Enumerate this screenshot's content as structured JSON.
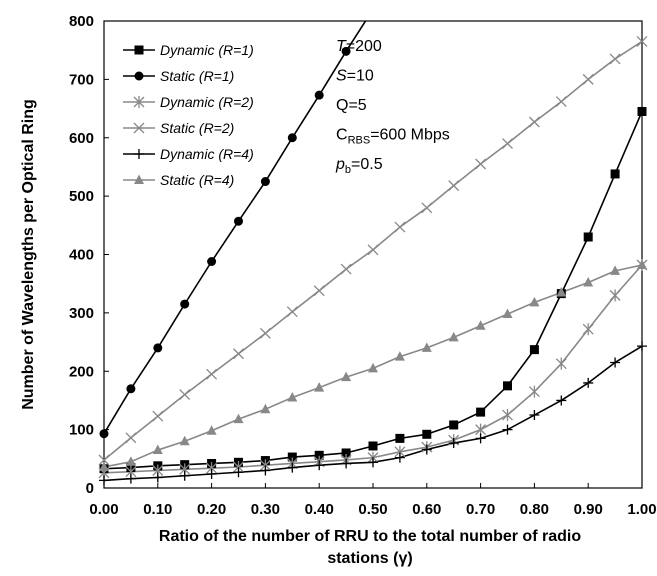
{
  "chart_data": {
    "type": "line",
    "xlabel_lines": [
      "Ratio of the number of RRU to the total number of radio",
      "stations (γ)"
    ],
    "ylabel": "Number of Wavelengths per Optical Ring",
    "xlim": [
      0,
      1
    ],
    "ylim": [
      0,
      800
    ],
    "x_ticks": [
      "0.00",
      "0.10",
      "0.20",
      "0.30",
      "0.40",
      "0.50",
      "0.60",
      "0.70",
      "0.80",
      "0.90",
      "1.00"
    ],
    "y_ticks": [
      "0",
      "100",
      "200",
      "300",
      "400",
      "500",
      "600",
      "700",
      "800"
    ],
    "grid": false,
    "legend_position": "top-left",
    "x": [
      0,
      0.05,
      0.1,
      0.15,
      0.2,
      0.25,
      0.3,
      0.35,
      0.4,
      0.45,
      0.5,
      0.55,
      0.6,
      0.65,
      0.7,
      0.75,
      0.8,
      0.85,
      0.9,
      0.95,
      1.0
    ],
    "series": [
      {
        "name": "Dynamic (R=1)",
        "color": "#000000",
        "marker": "square",
        "values": [
          33,
          35,
          38,
          40,
          42,
          44,
          47,
          53,
          56,
          60,
          72,
          85,
          92,
          108,
          130,
          175,
          237,
          333,
          430,
          538,
          645
        ]
      },
      {
        "name": "Static (R=1)",
        "color": "#000000",
        "marker": "circle",
        "values": [
          93,
          170,
          240,
          315,
          388,
          457,
          525,
          600,
          673,
          748,
          820,
          null,
          null,
          null,
          null,
          null,
          null,
          null,
          null,
          null,
          null
        ]
      },
      {
        "name": "Dynamic (R=2)",
        "color": "#888888",
        "marker": "asterisk",
        "values": [
          26,
          28,
          30,
          32,
          34,
          36,
          39,
          42,
          45,
          48,
          52,
          62,
          70,
          82,
          100,
          125,
          165,
          213,
          272,
          330,
          382
        ]
      },
      {
        "name": "Static (R=2)",
        "color": "#888888",
        "marker": "x",
        "values": [
          48,
          86,
          123,
          160,
          195,
          230,
          265,
          302,
          338,
          375,
          408,
          447,
          480,
          518,
          555,
          590,
          627,
          662,
          700,
          735,
          765
        ]
      },
      {
        "name": "Dynamic (R=4)",
        "color": "#000000",
        "marker": "plus",
        "values": [
          13,
          16,
          18,
          21,
          24,
          27,
          30,
          35,
          39,
          42,
          44,
          52,
          66,
          77,
          85,
          100,
          125,
          150,
          180,
          215,
          243
        ]
      },
      {
        "name": "Static (R=4)",
        "color": "#888888",
        "marker": "triangle",
        "values": [
          36,
          45,
          65,
          80,
          98,
          118,
          135,
          155,
          172,
          190,
          205,
          225,
          240,
          258,
          278,
          298,
          318,
          335,
          352,
          372,
          382
        ]
      }
    ],
    "annotations": [
      {
        "main": "T",
        "rest": "=200",
        "italic_main": true
      },
      {
        "main": "S",
        "rest": "=10",
        "italic_main": true
      },
      {
        "main": "Q",
        "rest": "=5",
        "italic_main": false
      },
      {
        "main": "C",
        "sub": "RBS",
        "rest": "=600 Mbps",
        "italic_main": false
      },
      {
        "main": "p",
        "sub": "b",
        "rest": "=0.5",
        "italic_main": true
      }
    ]
  }
}
